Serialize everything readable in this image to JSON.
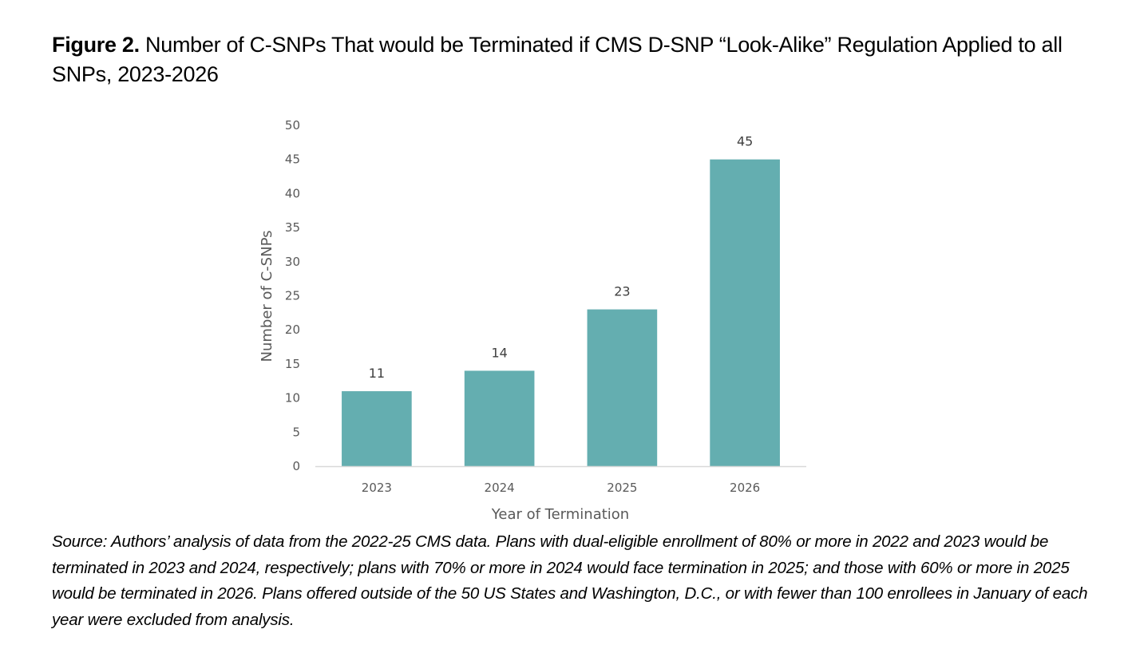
{
  "figure": {
    "label": "Figure 2.",
    "title": "Number of C-SNPs That would be Terminated if CMS D-SNP “Look-Alike” Regulation Applied to all SNPs, 2023-2026",
    "source_note": "Source: Authors’ analysis of data from the 2022-25 CMS data. Plans with dual-eligible enrollment of 80% or more in 2022 and 2023 would be terminated in 2023 and 2024, respectively; plans with 70% or more in 2024 would face termination in 2025; and those with 60% or more in 2025 would be terminated in 2026. Plans offered outside of the 50 US States and Washington, D.C., or with fewer than 100 enrollees in January of each year were excluded from analysis."
  },
  "colors": {
    "bar": "#64aeb0",
    "axis_line": "#d9d9d9",
    "tick_text": "#595959",
    "data_label": "#404040"
  },
  "chart_data": {
    "type": "bar",
    "title": "Number of C-SNPs That would be Terminated if CMS D-SNP “Look-Alike” Regulation Applied to all SNPs, 2023-2026",
    "categories": [
      "2023",
      "2024",
      "2025",
      "2026"
    ],
    "values": [
      11,
      14,
      23,
      45
    ],
    "data_labels": [
      "11",
      "14",
      "23",
      "45"
    ],
    "xlabel": "Year of Termination",
    "ylabel": "Number of C-SNPs",
    "ylim": [
      0,
      50
    ],
    "yticks": [
      0,
      5,
      10,
      15,
      20,
      25,
      30,
      35,
      40,
      45,
      50
    ],
    "grid": false,
    "legend": "none"
  }
}
